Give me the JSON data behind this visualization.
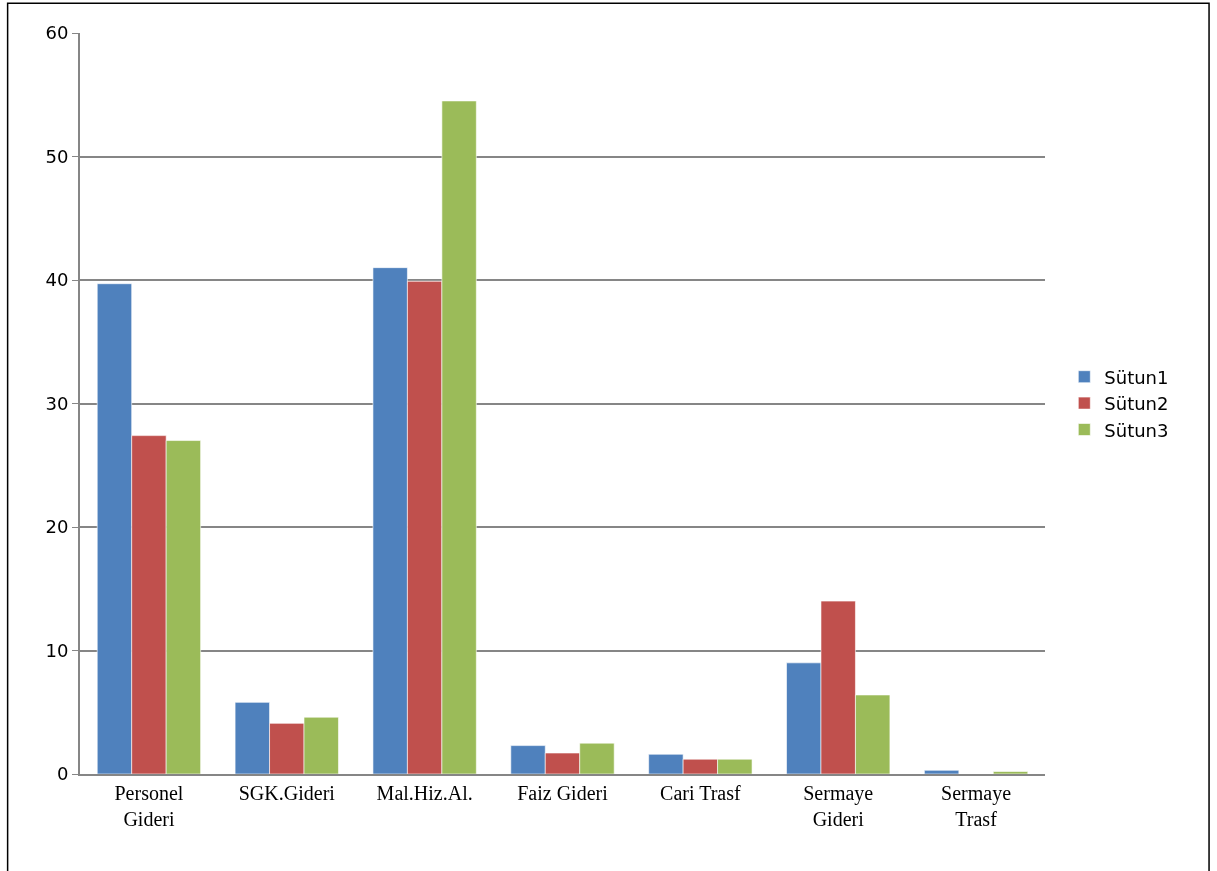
{
  "chart_data": {
    "type": "bar",
    "categories": [
      "Personel Gideri",
      "SGK.Gideri",
      "Mal.Hiz.Al.",
      "Faiz Gideri",
      "Cari Trasf",
      "Sermaye Gideri",
      "Sermaye Trasf"
    ],
    "series": [
      {
        "name": "Sütun1",
        "color": "#4f81bd",
        "values": [
          39.7,
          5.8,
          41.0,
          2.3,
          1.6,
          9.0,
          0.3
        ]
      },
      {
        "name": "Sütun2",
        "color": "#c0504d",
        "values": [
          27.4,
          4.1,
          39.9,
          1.7,
          1.2,
          14.0,
          null
        ]
      },
      {
        "name": "Sütun3",
        "color": "#9bbb59",
        "values": [
          27.0,
          4.6,
          54.5,
          2.5,
          1.2,
          6.4,
          0.2
        ]
      }
    ],
    "ylim": [
      0,
      60
    ],
    "yticks": [
      0,
      10,
      20,
      30,
      40,
      50,
      60
    ],
    "grid": "y",
    "legend": "right"
  }
}
